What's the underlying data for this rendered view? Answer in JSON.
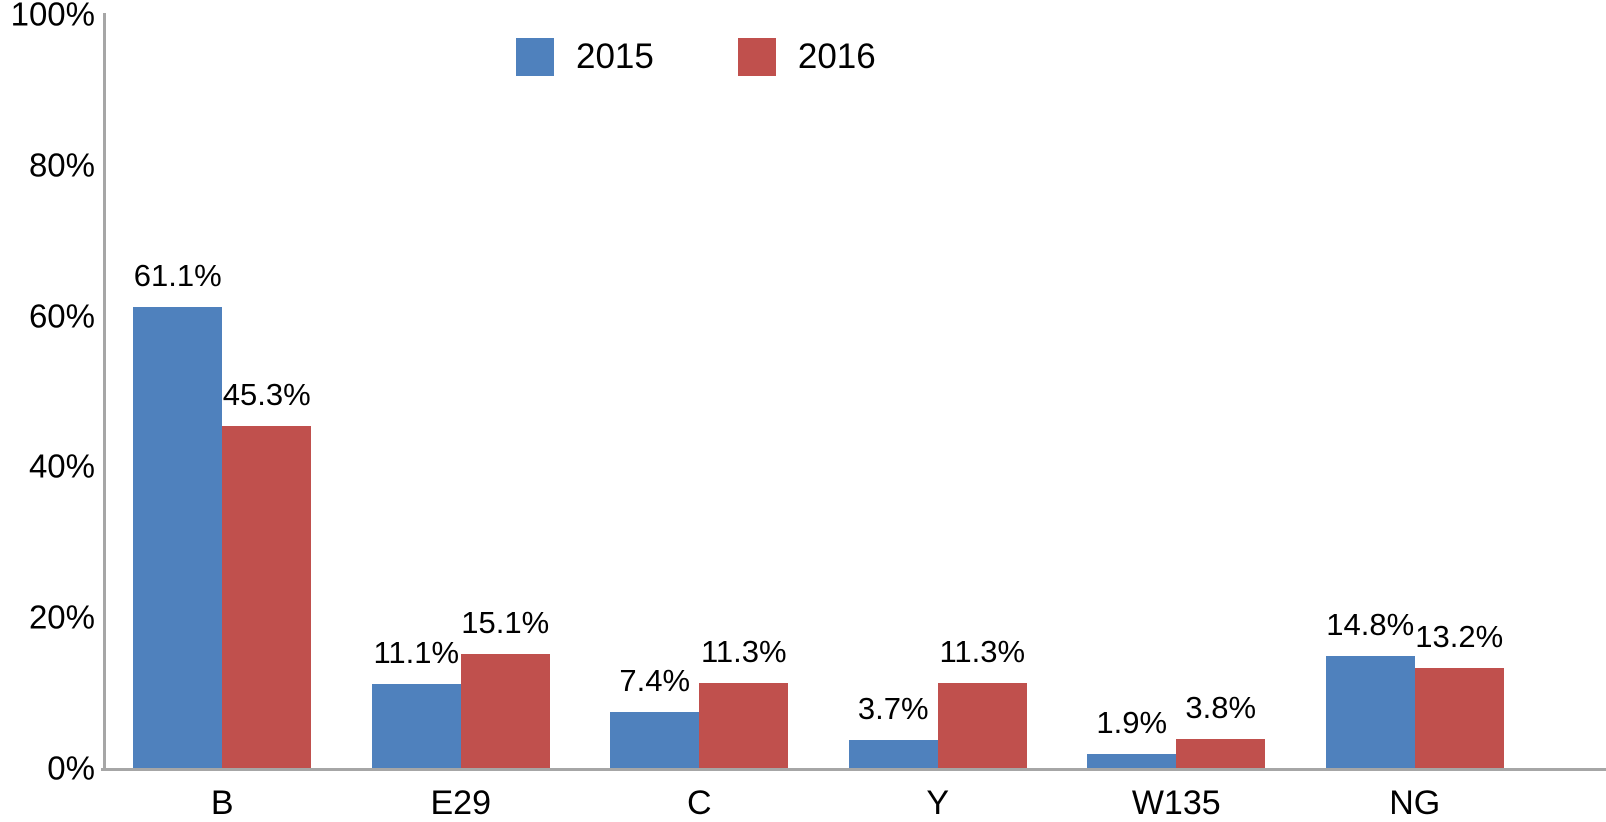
{
  "chart_data": {
    "type": "bar",
    "title": "",
    "xlabel": "",
    "ylabel": "",
    "categories": [
      "B",
      "E29",
      "C",
      "Y",
      "W135",
      "NG"
    ],
    "series": [
      {
        "name": "2015",
        "color": "#4f81bd",
        "values": [
          61.1,
          11.1,
          7.4,
          3.7,
          1.9,
          14.8
        ],
        "labels": [
          "61.1%",
          "11.1%",
          "7.4%",
          "3.7%",
          "1.9%",
          "14.8%"
        ]
      },
      {
        "name": "2016",
        "color": "#c0504d",
        "values": [
          45.3,
          15.1,
          11.3,
          11.3,
          3.8,
          13.2
        ],
        "labels": [
          "45.3%",
          "15.1%",
          "11.3%",
          "11.3%",
          "3.8%",
          "13.2%"
        ]
      }
    ],
    "ylim": [
      0,
      100
    ],
    "y_ticks": [
      {
        "value": 0,
        "label": "0%"
      },
      {
        "value": 20,
        "label": "20%"
      },
      {
        "value": 40,
        "label": "40%"
      },
      {
        "value": 60,
        "label": "60%"
      },
      {
        "value": 80,
        "label": "80%"
      },
      {
        "value": 100,
        "label": "100%"
      }
    ],
    "grid": false,
    "legend_position": "top-center",
    "axis_color": "#a6a6a6",
    "text_color": "#000000",
    "background_color": "#ffffff"
  }
}
